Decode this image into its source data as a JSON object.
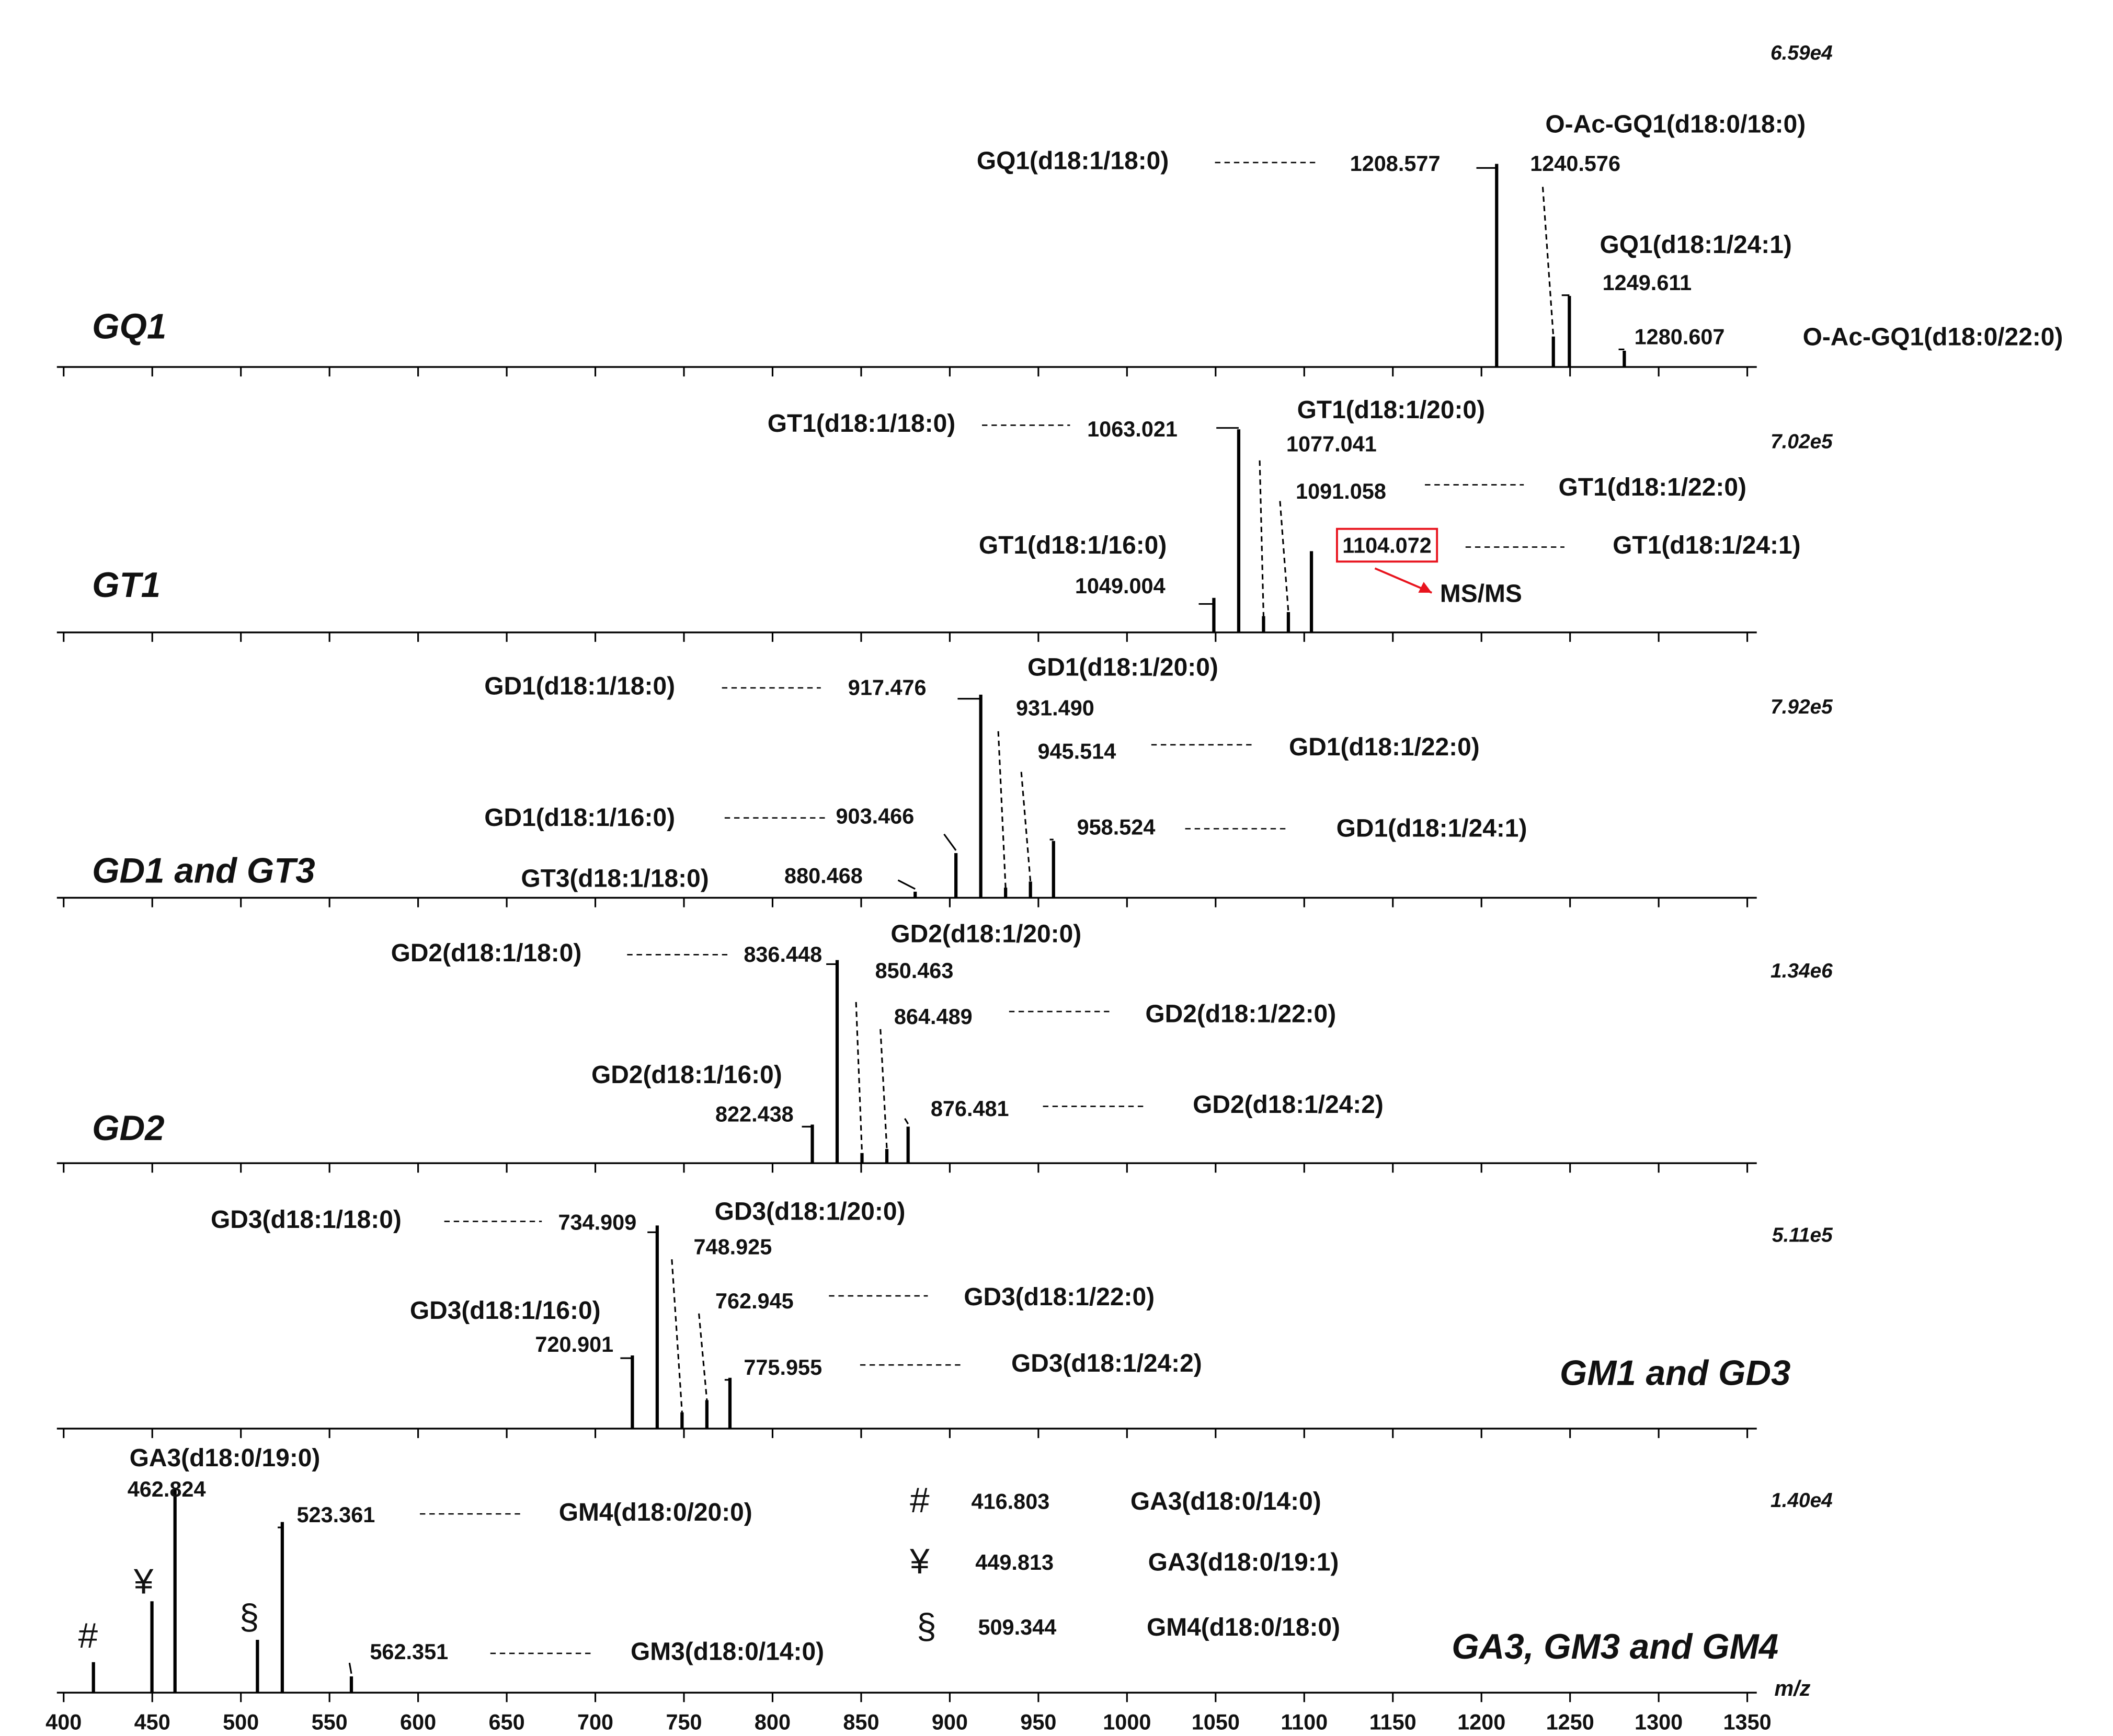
{
  "chart_data": [
    {
      "type": "spectrum",
      "title": "GQ1",
      "intensity": {
        "value": 65900,
        "label": "6.59e4"
      },
      "color": "#000000",
      "title_color": "#1428b4",
      "xlim": [
        400,
        1350
      ],
      "xticks": [
        400,
        450,
        500,
        550,
        600,
        650,
        700,
        750,
        800,
        850,
        900,
        950,
        1000,
        1050,
        1100,
        1150,
        1200,
        1250,
        1300,
        1350
      ],
      "ylim": [
        0,
        100
      ],
      "x": [
        1208.577,
        1240.576,
        1249.611,
        1280.607
      ],
      "values": [
        100,
        15,
        35,
        8
      ],
      "x_labels": [
        "1208.577",
        "1240.576",
        "1249.611",
        "1280.607"
      ],
      "names": [
        "GQ1(d18:1/18:0)",
        "O-Ac-GQ1(d18:0/18:0)",
        "GQ1(d18:1/24:1)",
        "O-Ac-GQ1(d18:0/22:0)"
      ]
    },
    {
      "type": "spectrum",
      "title": "GT1",
      "intensity": {
        "value": 702000,
        "label": "7.02e5"
      },
      "color": "#000000",
      "title_color": "#1428b4",
      "xlim": [
        400,
        1350
      ],
      "xticks": [
        400,
        450,
        500,
        550,
        600,
        650,
        700,
        750,
        800,
        850,
        900,
        950,
        1000,
        1050,
        1100,
        1150,
        1200,
        1250,
        1300,
        1350
      ],
      "ylim": [
        0,
        100
      ],
      "x": [
        1049.004,
        1063.021,
        1077.041,
        1091.058,
        1104.072
      ],
      "values": [
        17,
        100,
        8,
        10,
        40
      ],
      "x_labels": [
        "1049.004",
        "1063.021",
        "1077.041",
        "1091.058",
        "1104.072"
      ],
      "names": [
        "GT1(d18:1/16:0)",
        "GT1(d18:1/18:0)",
        "GT1(d18:1/20:0)",
        "GT1(d18:1/22:0)",
        "GT1(d18:1/24:1)"
      ],
      "notes": [
        null,
        null,
        null,
        null,
        "MS/MS"
      ],
      "note_color": "#e8141e"
    },
    {
      "type": "spectrum",
      "title": "GD1 and GT3",
      "intensity": {
        "value": 792000,
        "label": "7.92e5"
      },
      "color": "#000000",
      "title_color": "#1428b4",
      "xlim": [
        400,
        1350
      ],
      "xticks": [
        400,
        450,
        500,
        550,
        600,
        650,
        700,
        750,
        800,
        850,
        900,
        950,
        1000,
        1050,
        1100,
        1150,
        1200,
        1250,
        1300,
        1350
      ],
      "ylim": [
        0,
        100
      ],
      "x": [
        880.468,
        903.466,
        917.476,
        931.49,
        945.514,
        958.524
      ],
      "values": [
        3,
        22,
        100,
        5,
        8,
        28
      ],
      "x_labels": [
        "880.468",
        "903.466",
        "917.476",
        "931.490",
        "945.514",
        "958.524"
      ],
      "names": [
        "GT3(d18:1/18:0)",
        "GD1(d18:1/16:0)",
        "GD1(d18:1/18:0)",
        "GD1(d18:1/20:0)",
        "GD1(d18:1/22:0)",
        "GD1(d18:1/24:1)"
      ]
    },
    {
      "type": "spectrum",
      "title": "GD2",
      "intensity": {
        "value": 1340000,
        "label": "1.34e6"
      },
      "color": "#000000",
      "title_color": "#1428b4",
      "xlim": [
        400,
        1350
      ],
      "xticks": [
        400,
        450,
        500,
        550,
        600,
        650,
        700,
        750,
        800,
        850,
        900,
        950,
        1000,
        1050,
        1100,
        1150,
        1200,
        1250,
        1300,
        1350
      ],
      "ylim": [
        0,
        100
      ],
      "x": [
        822.438,
        836.448,
        850.463,
        864.489,
        876.481
      ],
      "values": [
        19,
        100,
        5,
        7,
        18
      ],
      "x_labels": [
        "822.438",
        "836.448",
        "850.463",
        "864.489",
        "876.481"
      ],
      "names": [
        "GD2(d18:1/16:0)",
        "GD2(d18:1/18:0)",
        "GD2(d18:1/20:0)",
        "GD2(d18:1/22:0)",
        "GD2(d18:1/24:2)"
      ]
    },
    {
      "type": "spectrum",
      "title": "GM1 and GD3",
      "intensity": {
        "value": 511000,
        "label": "5.11e5"
      },
      "color": "#000000",
      "title_color": "#1428b4",
      "xlim": [
        400,
        1350
      ],
      "xticks": [
        400,
        450,
        500,
        550,
        600,
        650,
        700,
        750,
        800,
        850,
        900,
        950,
        1000,
        1050,
        1100,
        1150,
        1200,
        1250,
        1300,
        1350
      ],
      "ylim": [
        0,
        100
      ],
      "x": [
        720.901,
        734.909,
        748.925,
        762.945,
        775.955
      ],
      "values": [
        36,
        100,
        8,
        14,
        25
      ],
      "x_labels": [
        "720.901",
        "734.909",
        "748.925",
        "762.945",
        "775.955"
      ],
      "names": [
        "GD3(d18:1/16:0)",
        "GD3(d18:1/18:0)",
        "GD3(d18:1/20:0)",
        "GD3(d18:1/22:0)",
        "GD3(d18:1/24:2)"
      ]
    },
    {
      "type": "spectrum",
      "title": "GA3, GM3 and GM4",
      "intensity": {
        "value": 14000,
        "label": "1.40e4"
      },
      "color": "#000000",
      "title_color": "#1428b4",
      "xlim": [
        400,
        1350
      ],
      "xticks": [
        400,
        450,
        500,
        550,
        600,
        650,
        700,
        750,
        800,
        850,
        900,
        950,
        1000,
        1050,
        1100,
        1150,
        1200,
        1250,
        1300,
        1350
      ],
      "ylim": [
        0,
        100
      ],
      "x_label": "m/z",
      "x": [
        416.803,
        449.813,
        462.824,
        509.344,
        523.361,
        562.351
      ],
      "values": [
        15,
        45,
        100,
        26,
        84,
        8
      ],
      "x_labels": [
        "416.803",
        "449.813",
        "462.824",
        "509.344",
        "523.361",
        "562.351"
      ],
      "names": [
        "GA3(d18:0/14:0)",
        "GA3(d18:0/19:1)",
        "GA3(d18:0/19:0)",
        "GM4(d18:0/18:0)",
        "GM4(d18:0/20:0)",
        "GM3(d18:0/14:0)"
      ],
      "markers": [
        "#",
        "¥",
        null,
        "§",
        null,
        null
      ]
    }
  ]
}
